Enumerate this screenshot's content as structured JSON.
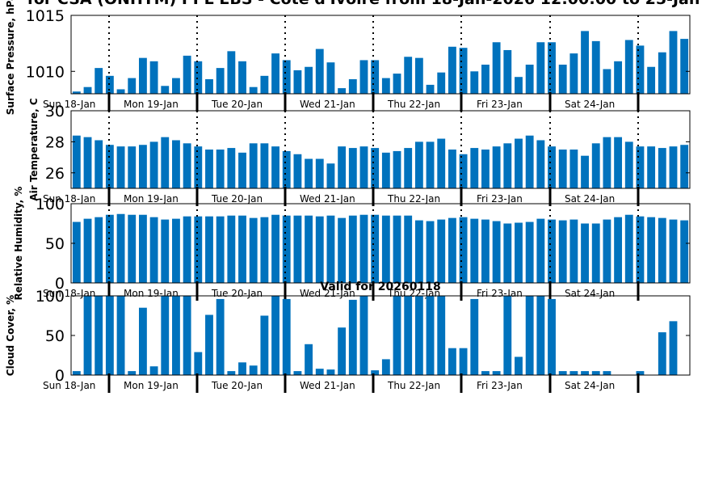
{
  "title": "for CSA (ONHYM) PPL EBS - Cote d'Ivoire from 18-Jan-2026 12:00:00 to 25-Jan",
  "valid_label": "Valid for 20260118",
  "chart_data": [
    {
      "type": "bar",
      "ylabel": "Surface Pressure, hPa",
      "ylim": [
        1008,
        1015
      ],
      "yticks": [
        1010,
        1015
      ],
      "color": "#0072bd",
      "day_labels": [
        "Sun 18-Jan",
        "Mon 19-Jan",
        "Tue 20-Jan",
        "Wed 21-Jan",
        "Thu 22-Jan",
        "Fri 23-Jan",
        "Sat 24-Jan"
      ],
      "values": [
        1008.2,
        1008.6,
        1010.3,
        1009.6,
        1008.4,
        1009.4,
        1011.2,
        1010.9,
        1008.7,
        1009.4,
        1011.4,
        1010.9,
        1009.3,
        1010.3,
        1011.8,
        1010.9,
        1008.6,
        1009.6,
        1011.6,
        1011.0,
        1010.1,
        1010.4,
        1012.0,
        1010.8,
        1008.5,
        1009.3,
        1011.0,
        1011.0,
        1009.4,
        1009.8,
        1011.3,
        1011.2,
        1008.8,
        1009.9,
        1012.2,
        1012.1,
        1010.0,
        1010.6,
        1012.6,
        1011.9,
        1009.5,
        1010.6,
        1012.6,
        1012.6,
        1010.6,
        1011.6,
        1013.6,
        1012.7,
        1010.2,
        1010.9,
        1012.8,
        1012.3,
        1010.4,
        1011.7,
        1013.6,
        1012.9
      ]
    },
    {
      "type": "bar",
      "ylabel": "Air Temperature, C",
      "ylim": [
        25,
        30
      ],
      "yticks": [
        26,
        28,
        30
      ],
      "color": "#0072bd",
      "day_labels": [
        "Sun 18-Jan",
        "Mon 19-Jan",
        "Tue 20-Jan",
        "Wed 21-Jan",
        "Thu 22-Jan",
        "Fri 23-Jan",
        "Sat 24-Jan"
      ],
      "values": [
        28.4,
        28.3,
        28.1,
        27.8,
        27.7,
        27.7,
        27.8,
        28.0,
        28.3,
        28.1,
        27.9,
        27.7,
        27.5,
        27.5,
        27.6,
        27.3,
        27.9,
        27.9,
        27.7,
        27.4,
        27.2,
        26.9,
        26.9,
        26.6,
        27.7,
        27.6,
        27.7,
        27.6,
        27.3,
        27.4,
        27.6,
        28.0,
        28.0,
        28.2,
        27.5,
        27.2,
        27.6,
        27.5,
        27.7,
        27.9,
        28.2,
        28.4,
        28.1,
        27.7,
        27.5,
        27.5,
        27.1,
        27.9,
        28.3,
        28.3,
        28.0,
        27.7,
        27.7,
        27.6,
        27.7,
        27.8
      ]
    },
    {
      "type": "bar",
      "ylabel": "Relative Humidity, %",
      "ylim": [
        0,
        100
      ],
      "yticks": [
        0,
        50,
        100
      ],
      "color": "#0072bd",
      "day_labels": [
        "Sun 18-Jan",
        "Mon 19-Jan",
        "Tue 20-Jan",
        "Wed 21-Jan",
        "Thu 22-Jan",
        "Fri 23-Jan",
        "Sat 24-Jan"
      ],
      "values": [
        77,
        81,
        83,
        86,
        87,
        86,
        86,
        83,
        80,
        81,
        84,
        84,
        84,
        84,
        85,
        85,
        82,
        83,
        86,
        85,
        85,
        85,
        84,
        85,
        82,
        85,
        86,
        86,
        85,
        85,
        85,
        79,
        78,
        80,
        82,
        83,
        81,
        80,
        78,
        75,
        76,
        77,
        81,
        80,
        79,
        80,
        75,
        75,
        80,
        83,
        86,
        84,
        83,
        82,
        80,
        79
      ]
    },
    {
      "type": "bar",
      "ylabel": "Cloud Cover, %",
      "ylim": [
        0,
        100
      ],
      "yticks": [
        0,
        50,
        100
      ],
      "color": "#0072bd",
      "day_labels": [
        "Sun 18-Jan",
        "Mon 19-Jan",
        "Tue 20-Jan",
        "Wed 21-Jan",
        "Thu 22-Jan",
        "Fri 23-Jan",
        "Sat 24-Jan"
      ],
      "values": [
        5,
        100,
        100,
        100,
        100,
        5,
        85,
        11,
        100,
        100,
        100,
        29,
        76,
        96,
        5,
        16,
        12,
        75,
        100,
        96,
        5,
        39,
        8,
        7,
        60,
        95,
        100,
        6,
        20,
        100,
        100,
        100,
        100,
        100,
        34,
        34,
        96,
        5,
        5,
        100,
        23,
        100,
        100,
        96,
        5,
        5,
        5,
        5,
        5,
        0,
        0,
        5,
        0,
        54,
        68,
        0
      ]
    }
  ]
}
